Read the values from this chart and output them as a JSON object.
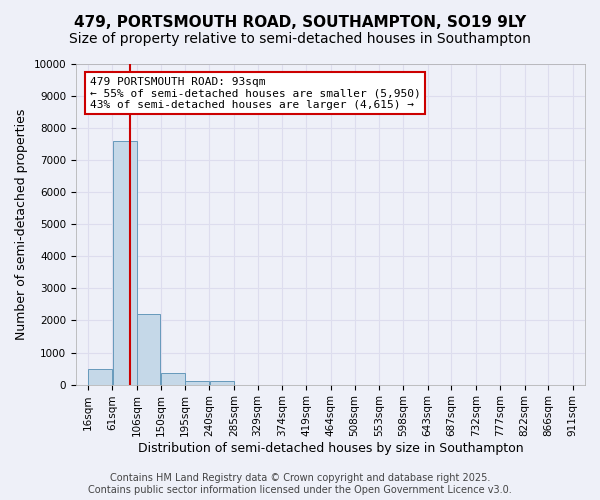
{
  "title": "479, PORTSMOUTH ROAD, SOUTHAMPTON, SO19 9LY",
  "subtitle": "Size of property relative to semi-detached houses in Southampton",
  "xlabel": "Distribution of semi-detached houses by size in Southampton",
  "ylabel": "Number of semi-detached properties",
  "categories": [
    "16sqm",
    "61sqm",
    "106sqm",
    "150sqm",
    "195sqm",
    "240sqm",
    "285sqm",
    "329sqm",
    "374sqm",
    "419sqm",
    "464sqm",
    "508sqm",
    "553sqm",
    "598sqm",
    "643sqm",
    "687sqm",
    "732sqm",
    "777sqm",
    "822sqm",
    "866sqm",
    "911sqm"
  ],
  "bin_edges": [
    16,
    61,
    106,
    150,
    195,
    240,
    285,
    329,
    374,
    419,
    464,
    508,
    553,
    598,
    643,
    687,
    732,
    777,
    822,
    866,
    911
  ],
  "values": [
    500,
    7600,
    2200,
    350,
    100,
    100,
    0,
    0,
    0,
    0,
    0,
    0,
    0,
    0,
    0,
    0,
    0,
    0,
    0,
    0,
    0
  ],
  "bar_color": "#c5d8e8",
  "bar_edge_color": "#6699bb",
  "vline_x": 93,
  "vline_color": "#cc0000",
  "annotation_text": "479 PORTSMOUTH ROAD: 93sqm\n← 55% of semi-detached houses are smaller (5,950)\n43% of semi-detached houses are larger (4,615) →",
  "annotation_box_color": "#cc0000",
  "annotation_bg": "#ffffff",
  "ylim": [
    0,
    10000
  ],
  "yticks": [
    0,
    1000,
    2000,
    3000,
    4000,
    5000,
    6000,
    7000,
    8000,
    9000,
    10000
  ],
  "grid_color": "#ddddee",
  "bg_color": "#eef0f8",
  "footer_line1": "Contains HM Land Registry data © Crown copyright and database right 2025.",
  "footer_line2": "Contains public sector information licensed under the Open Government Licence v3.0.",
  "title_fontsize": 11,
  "subtitle_fontsize": 10,
  "axis_label_fontsize": 9,
  "tick_fontsize": 7.5,
  "annotation_fontsize": 8,
  "footer_fontsize": 7
}
